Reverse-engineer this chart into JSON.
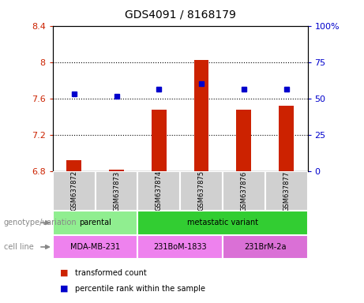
{
  "title": "GDS4091 / 8168179",
  "samples": [
    "GSM637872",
    "GSM637873",
    "GSM637874",
    "GSM637875",
    "GSM637876",
    "GSM637877"
  ],
  "red_values": [
    6.92,
    6.82,
    7.48,
    8.02,
    7.48,
    7.52
  ],
  "blue_values": [
    7.65,
    7.62,
    7.7,
    7.76,
    7.7,
    7.7
  ],
  "ylim_left": [
    6.8,
    8.4
  ],
  "ylim_right": [
    0,
    100
  ],
  "yticks_left": [
    6.8,
    7.2,
    7.6,
    8.0,
    8.4
  ],
  "yticks_right": [
    0,
    25,
    50,
    75,
    100
  ],
  "ytick_labels_left": [
    "6.8",
    "7.2",
    "7.6",
    "8",
    "8.4"
  ],
  "ytick_labels_right": [
    "0",
    "25",
    "50",
    "75",
    "100%"
  ],
  "hlines": [
    7.2,
    7.6,
    8.0
  ],
  "bar_bottom": 6.8,
  "bar_color": "#cc2200",
  "dot_color": "#0000cc",
  "bg_color": "#d0d0d0",
  "parental_color": "#90ee90",
  "metastatic_color": "#32cd32",
  "cell_line_color_1": "#ee82ee",
  "cell_line_color_2": "#da70d6",
  "genotype_groups": [
    {
      "label": "parental",
      "cols": [
        0,
        1
      ],
      "color": "#90ee90"
    },
    {
      "label": "metastatic variant",
      "cols": [
        2,
        3,
        4,
        5
      ],
      "color": "#32cd32"
    }
  ],
  "cell_lines": [
    {
      "label": "MDA-MB-231",
      "cols": [
        0,
        1
      ],
      "color": "#ee82ee"
    },
    {
      "label": "231BoM-1833",
      "cols": [
        2,
        3
      ],
      "color": "#ee82ee"
    },
    {
      "label": "231BrM-2a",
      "cols": [
        4,
        5
      ],
      "color": "#da70d6"
    }
  ],
  "legend_items": [
    {
      "label": "transformed count",
      "color": "#cc2200"
    },
    {
      "label": "percentile rank within the sample",
      "color": "#0000cc"
    }
  ],
  "axis_label_color_left": "#cc2200",
  "axis_label_color_right": "#0000cc",
  "tick_label_fontsize": 8,
  "title_fontsize": 10
}
